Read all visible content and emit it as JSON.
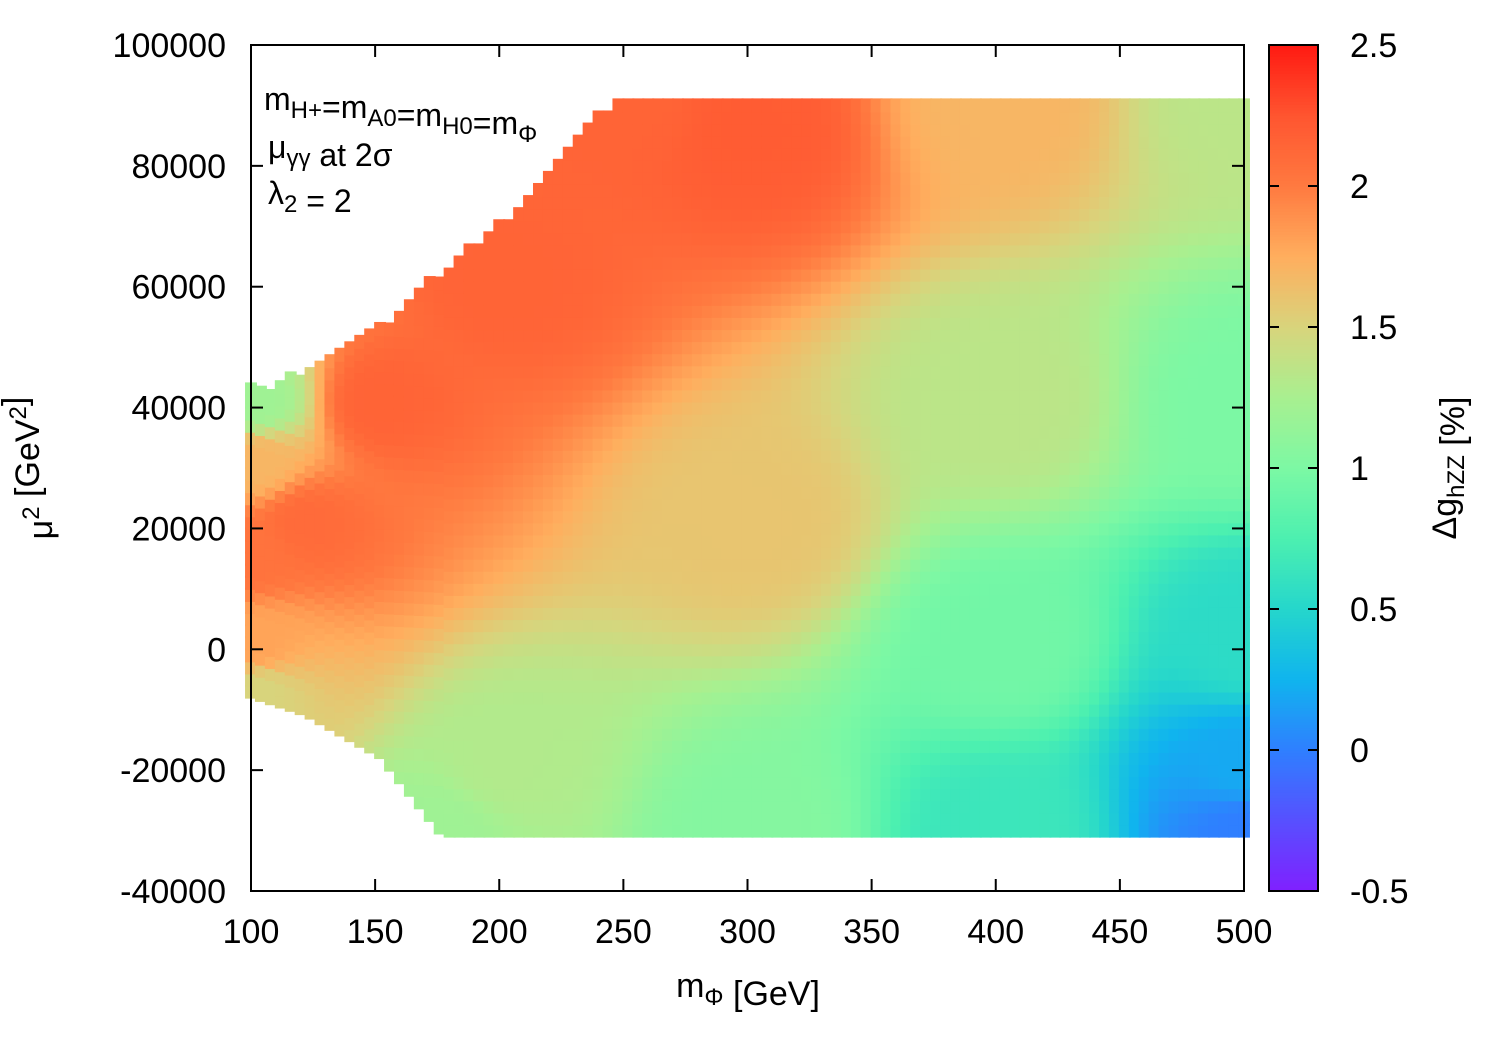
{
  "chart_data": {
    "type": "heatmap",
    "xlabel": "m_Φ [GeV]",
    "ylabel": "μ^2 [GeV^2]",
    "colorbar_label": "Δg_hZZ [%]",
    "xlim": [
      100,
      500
    ],
    "ylim": [
      -40000,
      100000
    ],
    "zlim": [
      -0.5,
      2.5
    ],
    "x_ticks": [
      "100",
      "150",
      "200",
      "250",
      "300",
      "350",
      "400",
      "450",
      "500"
    ],
    "y_ticks": [
      "-40000",
      "-20000",
      "0",
      "20000",
      "40000",
      "60000",
      "80000",
      "100000"
    ],
    "z_ticks": [
      "-0.5",
      "0",
      "0.5",
      "1",
      "1.5",
      "2",
      "2.5"
    ],
    "annotations": [
      "m_H+=m_A0=m_H0=m_Φ",
      "μ_γγ at 2σ",
      "λ_2 = 2"
    ],
    "grid": false,
    "region": {
      "upper_boundary": [
        [
          98,
          42000
        ],
        [
          110,
          43000
        ],
        [
          150,
          52000
        ],
        [
          170,
          60000
        ],
        [
          200,
          70000
        ],
        [
          230,
          84000
        ],
        [
          245,
          90000
        ],
        [
          500,
          90000
        ]
      ],
      "lower_boundary": [
        [
          98,
          -8000
        ],
        [
          120,
          -11000
        ],
        [
          150,
          -18000
        ],
        [
          175,
          -31000
        ],
        [
          500,
          -31000
        ]
      ]
    },
    "z_samples": [
      {
        "x": 100,
        "y": 40000,
        "z": 1.2
      },
      {
        "x": 100,
        "y": 30000,
        "z": 1.7
      },
      {
        "x": 100,
        "y": 15000,
        "z": 2.05
      },
      {
        "x": 100,
        "y": 0,
        "z": 1.8
      },
      {
        "x": 100,
        "y": -8000,
        "z": 1.5
      },
      {
        "x": 120,
        "y": 20000,
        "z": 2.1
      },
      {
        "x": 150,
        "y": 40000,
        "z": 2.15
      },
      {
        "x": 200,
        "y": 60000,
        "z": 2.15
      },
      {
        "x": 200,
        "y": -20000,
        "z": 1.3
      },
      {
        "x": 175,
        "y": -31000,
        "z": 1.2
      },
      {
        "x": 250,
        "y": 90000,
        "z": 2.15
      },
      {
        "x": 300,
        "y": 85000,
        "z": 2.2
      },
      {
        "x": 300,
        "y": 20000,
        "z": 1.6
      },
      {
        "x": 300,
        "y": -31000,
        "z": 1.05
      },
      {
        "x": 400,
        "y": 90000,
        "z": 1.7
      },
      {
        "x": 400,
        "y": 40000,
        "z": 1.35
      },
      {
        "x": 400,
        "y": 0,
        "z": 0.95
      },
      {
        "x": 400,
        "y": -31000,
        "z": 0.65
      },
      {
        "x": 500,
        "y": 90000,
        "z": 1.35
      },
      {
        "x": 500,
        "y": 40000,
        "z": 1.0
      },
      {
        "x": 500,
        "y": 0,
        "z": 0.55
      },
      {
        "x": 500,
        "y": -20000,
        "z": 0.2
      },
      {
        "x": 500,
        "y": -31000,
        "z": 0.0
      }
    ],
    "colormap": [
      {
        "v": -0.5,
        "color": "#8020ff"
      },
      {
        "v": 0.0,
        "color": "#2f7fff"
      },
      {
        "v": 0.25,
        "color": "#10b4ee"
      },
      {
        "v": 0.5,
        "color": "#25d6cc"
      },
      {
        "v": 0.75,
        "color": "#4cf0b0"
      },
      {
        "v": 1.0,
        "color": "#7cf8a4"
      },
      {
        "v": 1.25,
        "color": "#a8f090"
      },
      {
        "v": 1.5,
        "color": "#d8d47c"
      },
      {
        "v": 1.75,
        "color": "#ffae5e"
      },
      {
        "v": 2.0,
        "color": "#ff7a40"
      },
      {
        "v": 2.25,
        "color": "#ff5530"
      },
      {
        "v": 2.5,
        "color": "#ff1a12"
      }
    ]
  }
}
